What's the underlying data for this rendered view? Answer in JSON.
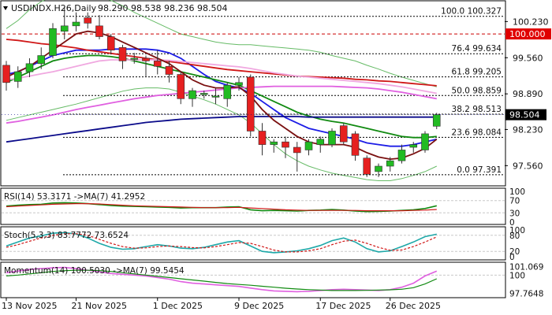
{
  "header": {
    "symbol": "USDINDX.H26,Daily",
    "ohlc": "98.290 98.538 98.236 98.504"
  },
  "chart_data": {
    "type": "candlestick",
    "symbol": "USDINDX.H26",
    "timeframe": "Daily",
    "last_price": 98.504,
    "y_ticks": [
      "100.230",
      "99.560",
      "98.890",
      "98.230",
      "97.560"
    ],
    "x_ticks": [
      "13 Nov 2025",
      "21 Nov 2025",
      "1 Dec 2025",
      "9 Dec 2025",
      "17 Dec 2025",
      "26 Dec 2025"
    ],
    "colors": {
      "bull": "#22bb22",
      "bear": "#e62020",
      "ma_blue": "#1c1ce6",
      "ma_navy": "#0b0b8a",
      "ma_red": "#d01818",
      "ma_pink": "#e060e0",
      "ma_lightpink": "#f0a8e0",
      "ma_green": "#118a11",
      "ma_dark": "#7a1010",
      "bollinger": "#66bb66"
    },
    "candles": [
      {
        "o": 99.42,
        "h": 99.5,
        "c": 99.1,
        "l": 98.95
      },
      {
        "o": 99.12,
        "h": 99.4,
        "c": 99.3,
        "l": 99.0
      },
      {
        "o": 99.3,
        "h": 99.55,
        "c": 99.45,
        "l": 99.2
      },
      {
        "o": 99.45,
        "h": 99.75,
        "c": 99.6,
        "l": 99.35
      },
      {
        "o": 99.6,
        "h": 100.2,
        "c": 100.1,
        "l": 99.55
      },
      {
        "o": 100.05,
        "h": 100.5,
        "c": 100.15,
        "l": 99.9
      },
      {
        "o": 100.15,
        "h": 100.4,
        "c": 100.22,
        "l": 100.05
      },
      {
        "o": 100.3,
        "h": 100.4,
        "c": 100.2,
        "l": 100.1
      },
      {
        "o": 100.15,
        "h": 100.35,
        "c": 99.95,
        "l": 99.9
      },
      {
        "o": 99.95,
        "h": 100.0,
        "c": 99.7,
        "l": 99.62
      },
      {
        "o": 99.75,
        "h": 99.8,
        "c": 99.5,
        "l": 99.35
      },
      {
        "o": 99.55,
        "h": 99.65,
        "c": 99.55,
        "l": 99.45
      },
      {
        "o": 99.55,
        "h": 99.6,
        "c": 99.5,
        "l": 99.2
      },
      {
        "o": 99.5,
        "h": 99.7,
        "c": 99.4,
        "l": 99.25
      },
      {
        "o": 99.4,
        "h": 99.5,
        "c": 99.25,
        "l": 99.1
      },
      {
        "o": 99.25,
        "h": 99.3,
        "c": 98.8,
        "l": 98.7
      },
      {
        "o": 98.8,
        "h": 99.0,
        "c": 98.95,
        "l": 98.65
      },
      {
        "o": 98.9,
        "h": 98.95,
        "c": 98.9,
        "l": 98.8
      },
      {
        "o": 98.85,
        "h": 99.0,
        "c": 98.85,
        "l": 98.7
      },
      {
        "o": 98.8,
        "h": 99.1,
        "c": 99.05,
        "l": 98.65
      },
      {
        "o": 99.05,
        "h": 99.2,
        "c": 99.1,
        "l": 98.95
      },
      {
        "o": 99.2,
        "h": 99.25,
        "c": 98.2,
        "l": 98.1
      },
      {
        "o": 98.2,
        "h": 98.35,
        "c": 97.95,
        "l": 97.75
      },
      {
        "o": 97.95,
        "h": 98.05,
        "c": 98.0,
        "l": 97.8
      },
      {
        "o": 98.0,
        "h": 98.1,
        "c": 97.9,
        "l": 97.7
      },
      {
        "o": 97.9,
        "h": 98.0,
        "c": 97.8,
        "l": 97.45
      },
      {
        "o": 97.85,
        "h": 98.05,
        "c": 98.0,
        "l": 97.75
      },
      {
        "o": 97.95,
        "h": 98.1,
        "c": 98.05,
        "l": 97.8
      },
      {
        "o": 97.95,
        "h": 98.25,
        "c": 98.2,
        "l": 97.9
      },
      {
        "o": 98.3,
        "h": 98.35,
        "c": 98.0,
        "l": 97.95
      },
      {
        "o": 98.15,
        "h": 98.2,
        "c": 97.75,
        "l": 97.65
      },
      {
        "o": 97.7,
        "h": 97.75,
        "c": 97.4,
        "l": 97.35
      },
      {
        "o": 97.45,
        "h": 97.6,
        "c": 97.55,
        "l": 97.35
      },
      {
        "o": 97.55,
        "h": 97.72,
        "c": 97.65,
        "l": 97.45
      },
      {
        "o": 97.65,
        "h": 97.95,
        "c": 97.85,
        "l": 97.6
      },
      {
        "o": 97.9,
        "h": 98.0,
        "c": 97.95,
        "l": 97.8
      },
      {
        "o": 97.85,
        "h": 98.2,
        "c": 98.15,
        "l": 97.8
      },
      {
        "o": 98.29,
        "h": 98.538,
        "c": 98.504,
        "l": 98.236
      }
    ],
    "moving_averages": [
      {
        "color": "#1c1ce6",
        "values": [
          99.25,
          99.3,
          99.4,
          99.5,
          99.6,
          99.65,
          99.7,
          99.7,
          99.7,
          99.72,
          99.72,
          99.72,
          99.72,
          99.7,
          99.65,
          99.55,
          99.4,
          99.25,
          99.12,
          99.05,
          99.0,
          98.9,
          98.75,
          98.6,
          98.45,
          98.35,
          98.25,
          98.2,
          98.15,
          98.1,
          98.05,
          97.98,
          97.95,
          97.92,
          97.92,
          97.95,
          98.0,
          98.05
        ]
      },
      {
        "color": "#118a11",
        "values": [
          99.1,
          99.2,
          99.3,
          99.4,
          99.5,
          99.55,
          99.58,
          99.6,
          99.6,
          99.58,
          99.55,
          99.5,
          99.45,
          99.4,
          99.35,
          99.3,
          99.25,
          99.2,
          99.15,
          99.1,
          99.05,
          98.95,
          98.85,
          98.75,
          98.65,
          98.55,
          98.48,
          98.42,
          98.38,
          98.35,
          98.3,
          98.25,
          98.2,
          98.15,
          98.1,
          98.08,
          98.08,
          98.1
        ]
      },
      {
        "color": "#d01818",
        "values": [
          99.9,
          99.88,
          99.85,
          99.82,
          99.8,
          99.77,
          99.74,
          99.7,
          99.67,
          99.64,
          99.61,
          99.58,
          99.55,
          99.52,
          99.49,
          99.46,
          99.43,
          99.4,
          99.37,
          99.34,
          99.32,
          99.3,
          99.28,
          99.26,
          99.24,
          99.22,
          99.21,
          99.2,
          99.19,
          99.18,
          99.16,
          99.15,
          99.13,
          99.12,
          99.1,
          99.08,
          99.06,
          99.04
        ]
      },
      {
        "color": "#e060e0",
        "values": [
          98.35,
          98.38,
          98.42,
          98.46,
          98.5,
          98.55,
          98.6,
          98.64,
          98.68,
          98.72,
          98.76,
          98.8,
          98.83,
          98.86,
          98.88,
          98.9,
          98.92,
          98.94,
          98.96,
          98.98,
          99.0,
          99.01,
          99.02,
          99.03,
          99.03,
          99.03,
          99.03,
          99.03,
          99.03,
          99.02,
          99.01,
          99.0,
          98.98,
          98.95,
          98.92,
          98.88,
          98.84,
          98.8
        ]
      },
      {
        "color": "#f0a8e0",
        "values": [
          99.15,
          99.18,
          99.22,
          99.26,
          99.3,
          99.35,
          99.4,
          99.45,
          99.5,
          99.52,
          99.52,
          99.52,
          99.52,
          99.52,
          99.51,
          99.49,
          99.47,
          99.45,
          99.43,
          99.41,
          99.39,
          99.36,
          99.32,
          99.28,
          99.25,
          99.22,
          99.2,
          99.18,
          99.16,
          99.14,
          99.12,
          99.1,
          99.08,
          99.05,
          99.02,
          98.98,
          98.94,
          98.9
        ]
      },
      {
        "color": "#0b0b8a",
        "values": [
          98.0,
          98.03,
          98.06,
          98.09,
          98.12,
          98.15,
          98.18,
          98.21,
          98.24,
          98.27,
          98.3,
          98.33,
          98.36,
          98.38,
          98.4,
          98.42,
          98.43,
          98.44,
          98.45,
          98.46,
          98.47,
          98.47,
          98.47,
          98.47,
          98.47,
          98.47,
          98.46,
          98.46,
          98.46,
          98.46,
          98.46,
          98.46,
          98.46,
          98.46,
          98.46,
          98.46,
          98.46,
          98.46
        ]
      },
      {
        "color": "#7a1010",
        "values": [
          99.2,
          99.3,
          99.4,
          99.55,
          99.7,
          99.85,
          100.0,
          100.05,
          100.02,
          99.95,
          99.85,
          99.75,
          99.65,
          99.55,
          99.45,
          99.3,
          99.15,
          99.05,
          99.0,
          99.0,
          99.02,
          98.85,
          98.6,
          98.4,
          98.25,
          98.1,
          98.0,
          97.95,
          97.95,
          97.95,
          97.9,
          97.8,
          97.72,
          97.68,
          97.7,
          97.78,
          97.88,
          98.05
        ]
      }
    ],
    "bollinger_bands": {
      "upper": [
        100.1,
        100.25,
        100.45,
        100.6,
        100.7,
        100.75,
        100.78,
        100.76,
        100.7,
        100.62,
        100.52,
        100.4,
        100.3,
        100.2,
        100.1,
        100.0,
        99.95,
        99.9,
        99.85,
        99.82,
        99.8,
        99.8,
        99.78,
        99.76,
        99.74,
        99.72,
        99.7,
        99.66,
        99.6,
        99.55,
        99.5,
        99.42,
        99.35,
        99.27,
        99.2,
        99.14,
        99.08,
        99.02
      ],
      "lower": [
        98.4,
        98.45,
        98.5,
        98.55,
        98.6,
        98.65,
        98.7,
        98.76,
        98.82,
        98.88,
        98.94,
        98.98,
        99.0,
        99.0,
        98.98,
        98.92,
        98.85,
        98.78,
        98.7,
        98.6,
        98.5,
        98.35,
        98.15,
        97.95,
        97.78,
        97.65,
        97.55,
        97.48,
        97.42,
        97.38,
        97.34,
        97.3,
        97.28,
        97.28,
        97.32,
        97.38,
        97.45,
        97.55
      ]
    },
    "levels": [
      {
        "price": 100.327,
        "label": "100.0 100.327",
        "color": "#000000",
        "dash": "2,2"
      },
      {
        "price": 99.634,
        "label": "76.4 99.634",
        "color": "#000000",
        "dash": "2,2"
      },
      {
        "price": 99.205,
        "label": "61.8 99.205",
        "color": "#000000",
        "dash": "2,2"
      },
      {
        "price": 98.859,
        "label": "50.0 98.859",
        "color": "#000000",
        "dash": "2,2"
      },
      {
        "price": 98.513,
        "label": "38.2 98.513",
        "color": "#000000",
        "dash": "2,2"
      },
      {
        "price": 98.084,
        "label": "23.6 98.084",
        "color": "#000000",
        "dash": "2,2"
      },
      {
        "price": 97.391,
        "label": "0.0 97.391",
        "color": "#000000",
        "dash": "2,2"
      },
      {
        "price": 100.0,
        "label": "100.000",
        "color": "#cc0000",
        "dash": "4,3",
        "axis_tag": true
      }
    ],
    "rsi": {
      "label": "RSI(14) 53.3171 ->MA(7) 41.2952",
      "ticks": [
        "100",
        "70",
        "30",
        "0"
      ],
      "rsi_values": [
        52,
        55,
        57,
        58,
        62,
        63,
        62,
        60,
        57,
        54,
        52,
        51,
        50,
        49,
        48,
        46,
        47,
        47,
        47,
        49,
        50,
        40,
        37,
        38,
        37,
        36,
        38,
        39,
        41,
        39,
        36,
        34,
        35,
        36,
        38,
        40,
        44,
        53
      ],
      "ma_values": [
        50,
        52,
        54,
        56,
        58,
        59,
        60,
        60,
        59,
        57,
        55,
        53,
        52,
        51,
        50,
        49,
        48,
        47,
        47,
        47,
        48,
        46,
        44,
        42,
        40,
        39,
        38,
        38,
        38,
        38,
        38,
        37,
        37,
        37,
        37,
        38,
        39,
        41
      ]
    },
    "stoch": {
      "label": "Stoch(5,3,3) 83.7772 73.6524",
      "ticks": [
        "100",
        "80",
        "20",
        "0"
      ],
      "k_values": [
        40,
        55,
        70,
        78,
        88,
        90,
        85,
        70,
        50,
        35,
        28,
        30,
        38,
        45,
        40,
        32,
        30,
        35,
        45,
        55,
        60,
        40,
        20,
        15,
        18,
        22,
        30,
        42,
        60,
        70,
        55,
        30,
        18,
        22,
        38,
        55,
        75,
        84
      ],
      "d_values": [
        35,
        45,
        58,
        70,
        80,
        86,
        86,
        80,
        65,
        50,
        38,
        32,
        33,
        38,
        40,
        38,
        34,
        33,
        38,
        45,
        53,
        50,
        38,
        25,
        18,
        18,
        22,
        30,
        45,
        58,
        62,
        50,
        35,
        24,
        25,
        38,
        55,
        74
      ]
    },
    "momentum": {
      "label": "Momentum(14) 100.5030 ->MA(7) 99.5454",
      "ticks": [
        "101.069",
        "100",
        "97.7648"
      ],
      "mom_values": [
        100.3,
        100.5,
        100.7,
        100.8,
        100.9,
        100.95,
        100.8,
        100.6,
        100.4,
        100.2,
        100.1,
        100.0,
        99.9,
        99.7,
        99.5,
        99.2,
        99.0,
        98.9,
        98.8,
        98.7,
        98.6,
        98.4,
        98.2,
        98.05,
        98.0,
        97.95,
        98.0,
        98.1,
        98.2,
        98.25,
        98.2,
        98.15,
        98.1,
        98.2,
        98.5,
        99.0,
        99.9,
        100.5
      ],
      "ma_values": [
        99.9,
        100.0,
        100.15,
        100.3,
        100.45,
        100.55,
        100.6,
        100.6,
        100.55,
        100.45,
        100.3,
        100.15,
        100.0,
        99.85,
        99.7,
        99.55,
        99.4,
        99.25,
        99.1,
        98.95,
        98.85,
        98.75,
        98.62,
        98.5,
        98.38,
        98.28,
        98.2,
        98.15,
        98.1,
        98.1,
        98.1,
        98.12,
        98.15,
        98.18,
        98.25,
        98.45,
        98.9,
        99.55
      ]
    }
  }
}
